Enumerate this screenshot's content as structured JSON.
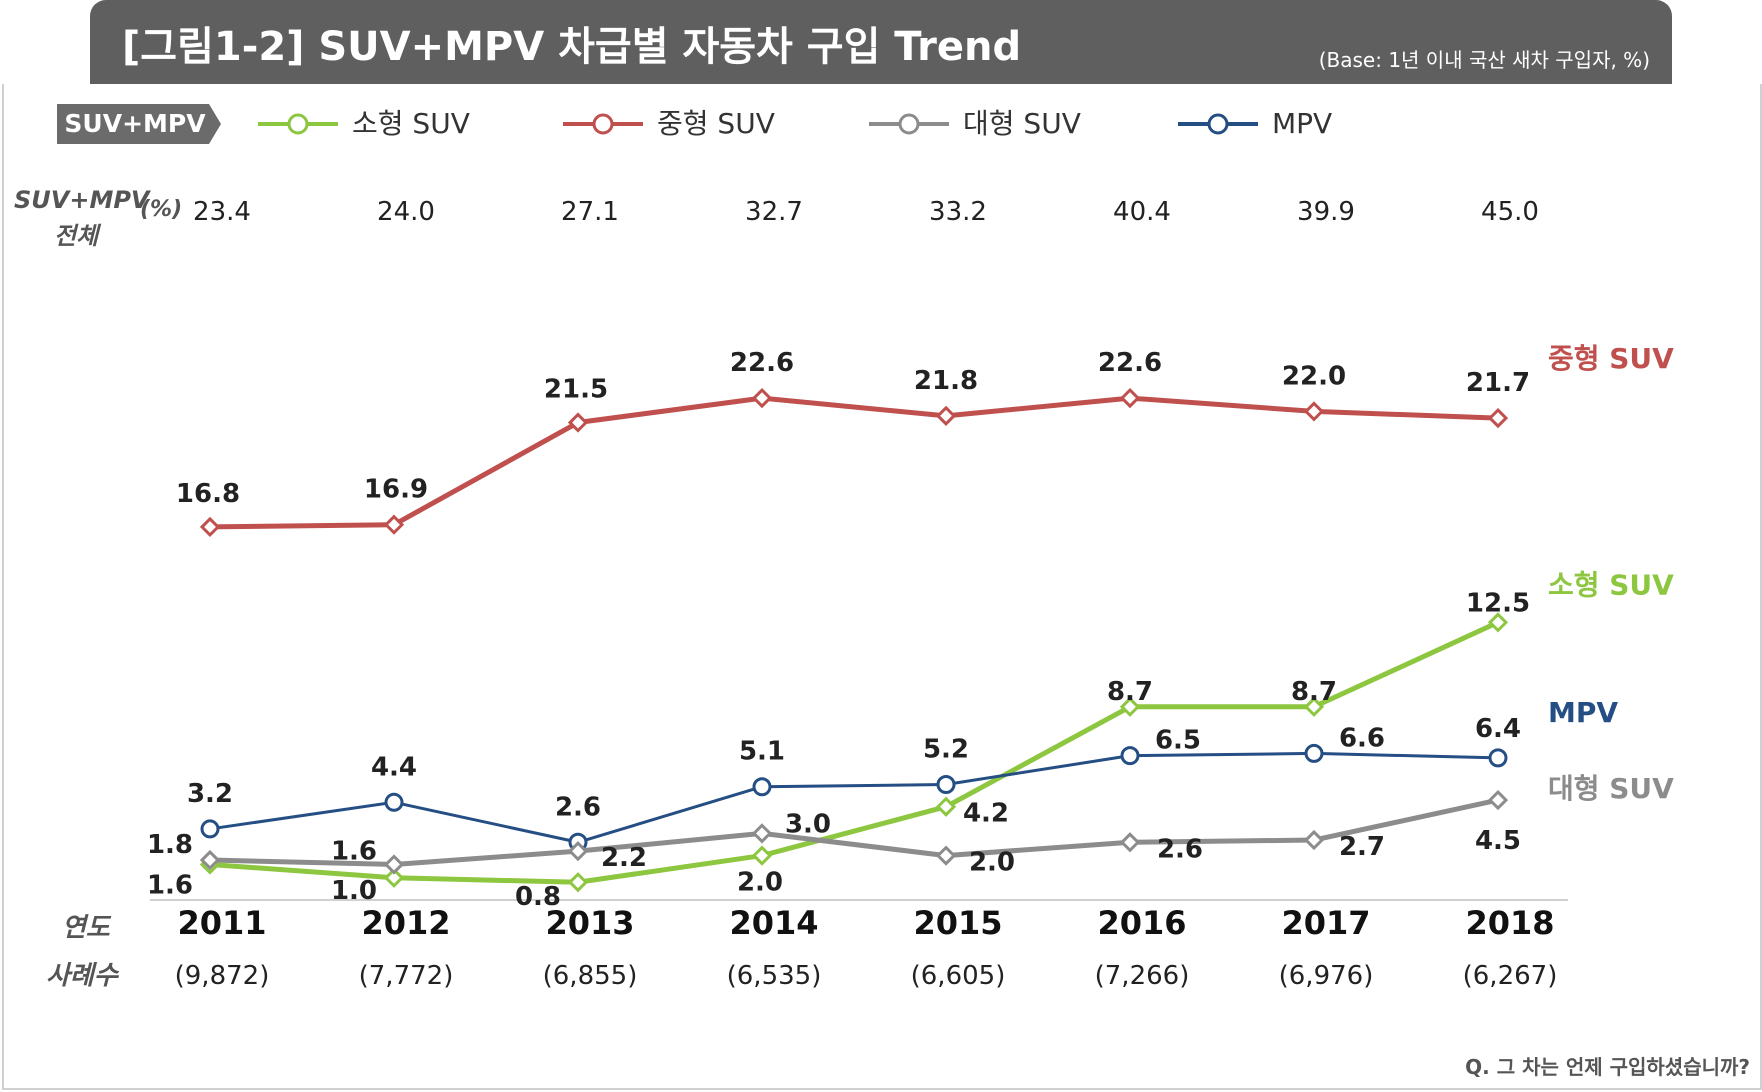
{
  "header": {
    "title": "[그림1-2] SUV+MPV 차급별 자동차 구입 Trend",
    "base_note": "(Base: 1년 이내 국산 새차 구입자, %)"
  },
  "legend": {
    "tag": "SUV+MPV",
    "items": [
      {
        "label": "소형 SUV",
        "color": "#8dc63f",
        "marker": "circle-icon"
      },
      {
        "label": "중형 SUV",
        "color": "#c0504d",
        "marker": "circle-icon"
      },
      {
        "label": "대형 SUV",
        "color": "#8c8c8c",
        "marker": "circle-icon"
      },
      {
        "label": "MPV",
        "color": "#254e84",
        "marker": "circle-icon"
      }
    ]
  },
  "total_row": {
    "label_line1": "SUV+MPV",
    "label_line2": "전체",
    "unit": "(%)",
    "values": [
      "23.4",
      "24.0",
      "27.1",
      "32.7",
      "33.2",
      "40.4",
      "39.9",
      "45.0"
    ]
  },
  "year_row_label": "연도",
  "cases_row": {
    "label": "사례수",
    "values": [
      "(9,872)",
      "(7,772)",
      "(6,855)",
      "(6,535)",
      "(6,605)",
      "(7,266)",
      "(6,976)",
      "(6,267)"
    ]
  },
  "footnote": "Q. 그 차는 언제 구입하셨습니까?",
  "chart_data": {
    "type": "line",
    "categories": [
      "2011",
      "2012",
      "2013",
      "2014",
      "2015",
      "2016",
      "2017",
      "2018"
    ],
    "ylabel": "",
    "ylim": [
      0,
      24
    ],
    "grid": false,
    "series": [
      {
        "name": "중형 SUV",
        "end_label": "중형 SUV",
        "color": "#c0504d",
        "marker": "diamond",
        "values": [
          16.8,
          16.9,
          21.5,
          22.6,
          21.8,
          22.6,
          22.0,
          21.7
        ],
        "labels": [
          "16.8",
          "16.9",
          "21.5",
          "22.6",
          "21.8",
          "22.6",
          "22.0",
          "21.7"
        ]
      },
      {
        "name": "소형 SUV",
        "end_label": "소형 SUV",
        "color": "#8dc63f",
        "marker": "diamond",
        "values": [
          1.6,
          1.0,
          0.8,
          2.0,
          4.2,
          8.7,
          8.7,
          12.5
        ],
        "labels": [
          "1.6",
          "1.0",
          "0.8",
          "2.0",
          "4.2",
          "8.7",
          "8.7",
          "12.5"
        ]
      },
      {
        "name": "MPV",
        "end_label": "MPV",
        "color": "#254e84",
        "marker": "circle",
        "values": [
          3.2,
          4.4,
          2.6,
          5.1,
          5.2,
          6.5,
          6.6,
          6.4
        ],
        "labels": [
          "3.2",
          "4.4",
          "2.6",
          "5.1",
          "5.2",
          "6.5",
          "6.6",
          "6.4"
        ]
      },
      {
        "name": "대형 SUV",
        "end_label": "대형 SUV",
        "color": "#8c8c8c",
        "marker": "diamond",
        "values": [
          1.8,
          1.6,
          2.2,
          3.0,
          2.0,
          2.6,
          2.7,
          4.5
        ],
        "labels": [
          "1.8",
          "1.6",
          "2.2",
          "3.0",
          "2.0",
          "2.6",
          "2.7",
          "4.5"
        ]
      }
    ]
  }
}
